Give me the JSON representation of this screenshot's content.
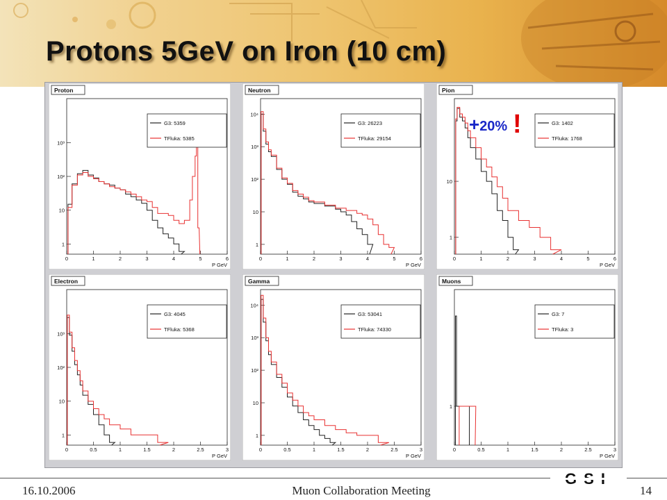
{
  "slide": {
    "title": "Protons 5GeV on Iron (10 cm)",
    "annotation_plus": "+",
    "annotation_pct": "20%",
    "annotation_bang": "!",
    "date": "16.10.2006",
    "meeting": "Muon Collaboration Meeting",
    "page": "14",
    "logo": "GSI"
  },
  "colors": {
    "g3": "#202020",
    "tfluka": "#e83030",
    "title_shadow": "#5a3c14",
    "annotation": "#1a28c8",
    "exclaim": "#e00000"
  },
  "chart_data": [
    {
      "type": "line",
      "title": "Proton",
      "xlabel": "P GeV",
      "log_y": true,
      "xlim": [
        0,
        6
      ],
      "ylim": [
        0.5,
        20000
      ],
      "xticks": [
        "0",
        "1",
        "2",
        "3",
        "4",
        "5",
        "6"
      ],
      "yticks": [
        "1",
        "10",
        "10²",
        "10³"
      ],
      "legend": [
        "G3: 5359",
        "TFluka: 5385"
      ],
      "series": [
        {
          "name": "G3",
          "x": [
            0.05,
            0.2,
            0.4,
            0.6,
            0.8,
            1.0,
            1.2,
            1.4,
            1.6,
            1.8,
            2.0,
            2.2,
            2.4,
            2.6,
            2.8,
            3.0,
            3.2,
            3.4,
            3.6,
            3.8,
            4.0,
            4.2
          ],
          "values": [
            15,
            60,
            120,
            150,
            110,
            90,
            70,
            60,
            55,
            45,
            40,
            30,
            25,
            20,
            16,
            10,
            5,
            3,
            2,
            1.5,
            1,
            0.6
          ]
        },
        {
          "name": "TFluka",
          "x": [
            0.05,
            0.2,
            0.4,
            0.6,
            0.8,
            1.0,
            1.2,
            1.4,
            1.6,
            1.8,
            2.0,
            2.2,
            2.4,
            2.6,
            2.8,
            3.0,
            3.2,
            3.4,
            3.6,
            3.8,
            4.0,
            4.2,
            4.4,
            4.6,
            4.7,
            4.8,
            4.85,
            4.9
          ],
          "values": [
            12,
            55,
            110,
            130,
            100,
            85,
            70,
            60,
            50,
            45,
            40,
            35,
            30,
            25,
            20,
            18,
            12,
            8,
            8,
            7,
            5,
            4,
            5,
            20,
            100,
            400,
            1200,
            3
          ]
        }
      ]
    },
    {
      "type": "line",
      "title": "Neutron",
      "xlabel": "P GeV",
      "log_y": true,
      "xlim": [
        0,
        6
      ],
      "ylim": [
        0.5,
        30000
      ],
      "xticks": [
        "0",
        "1",
        "2",
        "3",
        "4",
        "5",
        "6"
      ],
      "yticks": [
        "1",
        "10",
        "10²",
        "10³",
        "10⁴"
      ],
      "legend": [
        "G3: 26223",
        "TFluka: 29154"
      ],
      "series": [
        {
          "name": "G3",
          "x": [
            0.02,
            0.1,
            0.2,
            0.3,
            0.4,
            0.6,
            0.8,
            1.0,
            1.2,
            1.4,
            1.6,
            1.8,
            2.0,
            2.4,
            2.8,
            3.0,
            3.2,
            3.4,
            3.6,
            3.8,
            4.0
          ],
          "values": [
            10000,
            3000,
            1200,
            700,
            500,
            200,
            100,
            70,
            40,
            30,
            25,
            20,
            18,
            15,
            12,
            10,
            8,
            5,
            3,
            2,
            1
          ]
        },
        {
          "name": "TFluka",
          "x": [
            0.02,
            0.1,
            0.2,
            0.3,
            0.4,
            0.6,
            0.8,
            1.0,
            1.2,
            1.4,
            1.6,
            1.8,
            2.0,
            2.4,
            2.8,
            3.2,
            3.6,
            3.8,
            4.0,
            4.2,
            4.4,
            4.6,
            4.8
          ],
          "values": [
            12000,
            3500,
            1400,
            800,
            550,
            220,
            110,
            75,
            45,
            35,
            28,
            22,
            20,
            16,
            13,
            11,
            9,
            8,
            6,
            4,
            2,
            1,
            0.8
          ]
        }
      ]
    },
    {
      "type": "line",
      "title": "Pion",
      "xlabel": "P GeV",
      "log_y": true,
      "xlim": [
        0,
        6
      ],
      "ylim": [
        0.5,
        300
      ],
      "xticks": [
        "0",
        "1",
        "2",
        "3",
        "4",
        "5",
        "6"
      ],
      "yticks": [
        "1",
        "10"
      ],
      "legend": [
        "G3: 1402",
        "TFluka: 1768"
      ],
      "series": [
        {
          "name": "G3",
          "x": [
            0.05,
            0.1,
            0.2,
            0.3,
            0.4,
            0.5,
            0.6,
            0.8,
            1.0,
            1.2,
            1.4,
            1.6,
            1.8,
            2.0,
            2.2
          ],
          "values": [
            120,
            200,
            140,
            120,
            90,
            60,
            40,
            25,
            15,
            10,
            6,
            3,
            2,
            1,
            0.6
          ]
        },
        {
          "name": "TFluka",
          "x": [
            0.05,
            0.1,
            0.2,
            0.3,
            0.4,
            0.5,
            0.6,
            0.8,
            1.0,
            1.2,
            1.4,
            1.6,
            1.8,
            2.0,
            2.4,
            2.8,
            3.2,
            3.6
          ],
          "values": [
            130,
            210,
            160,
            140,
            110,
            80,
            60,
            40,
            25,
            18,
            12,
            8,
            5,
            3,
            2,
            1.5,
            1,
            0.6
          ]
        }
      ]
    },
    {
      "type": "line",
      "title": "Electron",
      "xlabel": "P GeV",
      "log_y": true,
      "xlim": [
        0,
        3
      ],
      "ylim": [
        0.5,
        20000
      ],
      "xticks": [
        "0",
        "0.5",
        "1",
        "1.5",
        "2",
        "2.5",
        "3"
      ],
      "yticks": [
        "1",
        "10",
        "10²",
        "10³"
      ],
      "legend": [
        "G3: 4045",
        "TFluka: 5368"
      ],
      "series": [
        {
          "name": "G3",
          "x": [
            0.01,
            0.05,
            0.1,
            0.15,
            0.2,
            0.25,
            0.3,
            0.4,
            0.5,
            0.6,
            0.7,
            0.8
          ],
          "values": [
            3000,
            900,
            300,
            120,
            60,
            30,
            15,
            8,
            4,
            2,
            1,
            0.6
          ]
        },
        {
          "name": "TFluka",
          "x": [
            0.01,
            0.05,
            0.1,
            0.15,
            0.2,
            0.25,
            0.3,
            0.4,
            0.5,
            0.6,
            0.7,
            0.8,
            1.0,
            1.2,
            1.5,
            1.7
          ],
          "values": [
            3500,
            1100,
            380,
            160,
            80,
            40,
            20,
            10,
            6,
            4,
            3,
            2,
            1.5,
            1,
            1,
            0.6
          ]
        }
      ]
    },
    {
      "type": "line",
      "title": "Gamma",
      "xlabel": "P GeV",
      "log_y": true,
      "xlim": [
        0,
        3
      ],
      "ylim": [
        0.5,
        30000
      ],
      "xticks": [
        "0",
        "0.5",
        "1",
        "1.5",
        "2",
        "2.5",
        "3"
      ],
      "yticks": [
        "1",
        "10",
        "10²",
        "10³",
        "10⁴"
      ],
      "legend": [
        "G3: 53041",
        "TFluka: 74330"
      ],
      "series": [
        {
          "name": "G3",
          "x": [
            0.01,
            0.05,
            0.1,
            0.15,
            0.2,
            0.3,
            0.4,
            0.5,
            0.6,
            0.7,
            0.8,
            0.9,
            1.0,
            1.1,
            1.2,
            1.3
          ],
          "values": [
            15000,
            3000,
            800,
            300,
            150,
            60,
            30,
            15,
            8,
            5,
            3,
            2,
            1.5,
            1,
            0.8,
            0.6
          ]
        },
        {
          "name": "TFluka",
          "x": [
            0.01,
            0.05,
            0.1,
            0.15,
            0.2,
            0.3,
            0.4,
            0.5,
            0.6,
            0.7,
            0.8,
            0.9,
            1.0,
            1.2,
            1.4,
            1.6,
            1.8,
            2.0,
            2.2
          ],
          "values": [
            20000,
            4000,
            1000,
            380,
            180,
            75,
            40,
            20,
            12,
            8,
            5,
            4,
            3,
            2,
            1.5,
            1.2,
            1,
            1,
            0.6
          ]
        }
      ]
    },
    {
      "type": "line",
      "title": "Muons",
      "xlabel": "P GeV",
      "log_y": true,
      "xlim": [
        0,
        3
      ],
      "ylim": [
        0.5,
        8
      ],
      "xticks": [
        "0",
        "0.5",
        "1",
        "1.5",
        "2",
        "2.5",
        "3"
      ],
      "yticks": [
        "1"
      ],
      "legend": [
        "G3: 7",
        "TFluka: 3"
      ],
      "series": [
        {
          "name": "G3",
          "x": [
            0.02,
            0.04,
            0.1,
            0.13,
            0.17,
            0.2,
            0.24
          ],
          "values": [
            5,
            1,
            1,
            1,
            1,
            1,
            1
          ]
        },
        {
          "name": "TFluka",
          "x": [
            0.09,
            0.14,
            0.22,
            0.3,
            0.35
          ],
          "values": [
            1,
            1,
            1,
            1,
            1
          ]
        }
      ]
    }
  ]
}
